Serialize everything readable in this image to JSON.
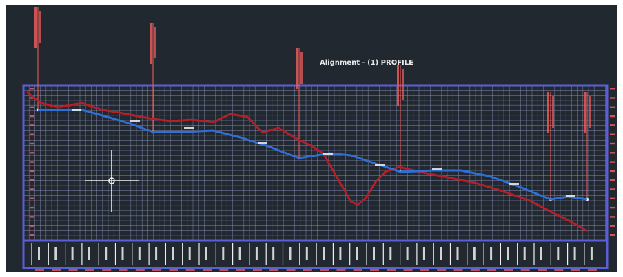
{
  "title": "Alignment - (1) PROFILE",
  "colors": {
    "background": "#212830",
    "grid": "#9aa0c8",
    "frame": "#5b5fd6",
    "existing_ground": "#b3202a",
    "design_profile": "#2f6fd6",
    "annotation": "#e85a5a",
    "text": "#e8e8e8"
  },
  "crosshair": {
    "name": "cad-crosshair",
    "icon": "crosshair-icon"
  }
}
